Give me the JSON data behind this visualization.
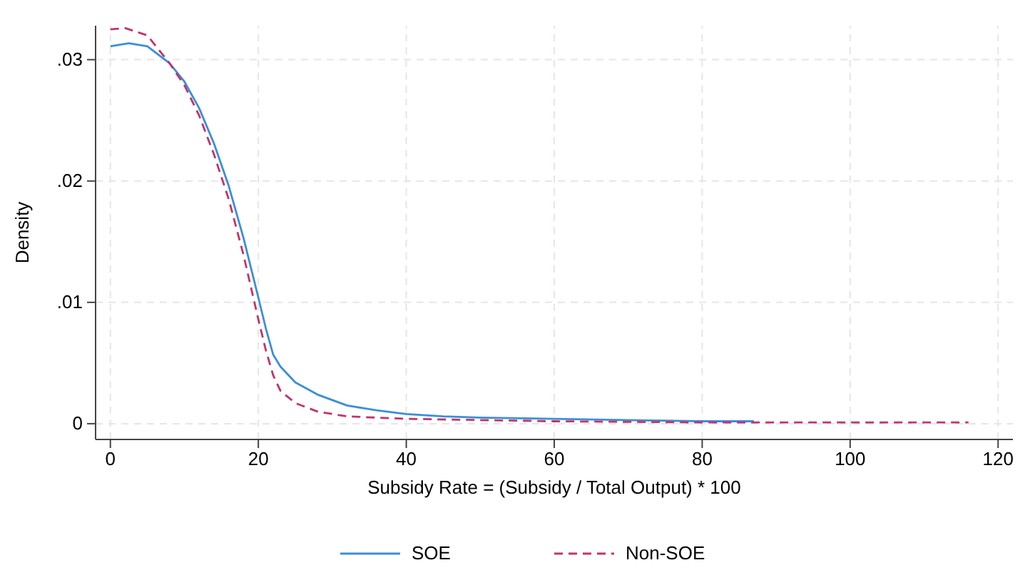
{
  "chart_data": {
    "type": "line",
    "xlabel": "Subsidy Rate = (Subsidy / Total Output) * 100",
    "ylabel": "Density",
    "xlim": [
      -2,
      122
    ],
    "xticks": [
      0,
      20,
      40,
      60,
      80,
      100,
      120
    ],
    "ylim": [
      -0.0013,
      0.0328
    ],
    "yticks": [
      {
        "value": 0,
        "label": "0"
      },
      {
        "value": 0.01,
        "label": ".01"
      },
      {
        "value": 0.02,
        "label": ".02"
      },
      {
        "value": 0.03,
        "label": ".03"
      }
    ],
    "grid": true,
    "legend": "bottom",
    "series": [
      {
        "name": "SOE",
        "color": "#3a8fd9",
        "line_style": "solid",
        "x": [
          0,
          2.5,
          5,
          8,
          10,
          12,
          14,
          16,
          18,
          20,
          21,
          22,
          23,
          25,
          28,
          32,
          36,
          40,
          45,
          50,
          60,
          70,
          80,
          87
        ],
        "values": [
          0.0311,
          0.03135,
          0.0311,
          0.0297,
          0.0282,
          0.026,
          0.0231,
          0.0196,
          0.0153,
          0.0104,
          0.0079,
          0.0057,
          0.0047,
          0.0034,
          0.0024,
          0.0015,
          0.0011,
          0.0008,
          0.0006,
          0.0005,
          0.0004,
          0.0003,
          0.0002,
          0.0002
        ]
      },
      {
        "name": "Non-SOE",
        "color": "#c4336b",
        "line_style": "dashed",
        "x": [
          0,
          2,
          5,
          8,
          10,
          12,
          14,
          16,
          18,
          20,
          21,
          22,
          23,
          25,
          28,
          32,
          40,
          50,
          60,
          80,
          100,
          116
        ],
        "values": [
          0.0325,
          0.0326,
          0.032,
          0.0297,
          0.0279,
          0.0254,
          0.0222,
          0.0185,
          0.0139,
          0.0086,
          0.0061,
          0.004,
          0.0027,
          0.0017,
          0.001,
          0.0006,
          0.0004,
          0.0003,
          0.0002,
          0.0001,
          0.0001,
          0.0001
        ]
      }
    ]
  }
}
